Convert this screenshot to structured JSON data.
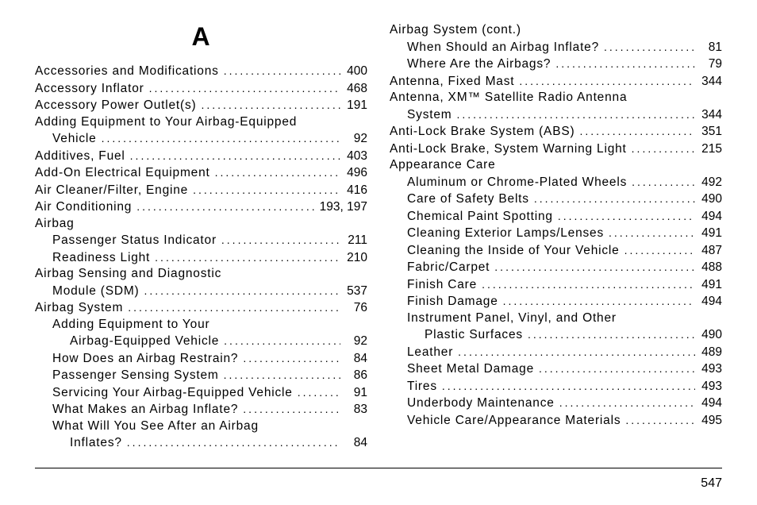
{
  "section_letter": "A",
  "page_number": "547",
  "left_column": [
    {
      "label": "Accessories and Modifications",
      "page": "400",
      "indent": 0
    },
    {
      "label": "Accessory Inflator",
      "page": "468",
      "indent": 0
    },
    {
      "label": "Accessory Power Outlet(s)",
      "page": "191",
      "indent": 0
    },
    {
      "label": "Adding Equipment to Your Airbag-Equipped",
      "page": "",
      "indent": 0,
      "nopage": true
    },
    {
      "label": "Vehicle",
      "page": "92",
      "indent": 1
    },
    {
      "label": "Additives, Fuel",
      "page": "403",
      "indent": 0
    },
    {
      "label": "Add-On Electrical Equipment",
      "page": "496",
      "indent": 0
    },
    {
      "label": "Air Cleaner/Filter, Engine",
      "page": "416",
      "indent": 0
    },
    {
      "label": "Air Conditioning",
      "page": "193,   197",
      "indent": 0
    },
    {
      "label": "Airbag",
      "page": "",
      "indent": 0,
      "nopage": true
    },
    {
      "label": "Passenger Status Indicator",
      "page": "211",
      "indent": 1
    },
    {
      "label": "Readiness Light",
      "page": "210",
      "indent": 1
    },
    {
      "label": "Airbag Sensing and Diagnostic",
      "page": "",
      "indent": 0,
      "nopage": true
    },
    {
      "label": "Module (SDM)",
      "page": "537",
      "indent": 1
    },
    {
      "label": "Airbag System",
      "page": "76",
      "indent": 0
    },
    {
      "label": "Adding Equipment to Your",
      "page": "",
      "indent": 1,
      "nopage": true
    },
    {
      "label": "Airbag-Equipped Vehicle",
      "page": "92",
      "indent": 2
    },
    {
      "label": "How Does an Airbag Restrain?",
      "page": "84",
      "indent": 1
    },
    {
      "label": "Passenger Sensing System",
      "page": "86",
      "indent": 1
    },
    {
      "label": "Servicing Your Airbag-Equipped Vehicle",
      "page": "91",
      "indent": 1
    },
    {
      "label": "What Makes an Airbag Inflate?",
      "page": "83",
      "indent": 1
    },
    {
      "label": "What Will You See After an Airbag",
      "page": "",
      "indent": 1,
      "nopage": true
    },
    {
      "label": "Inflates?",
      "page": "84",
      "indent": 2
    }
  ],
  "right_column": [
    {
      "label": "Airbag System (cont.)",
      "page": "",
      "indent": 0,
      "nopage": true
    },
    {
      "label": "When Should an Airbag Inflate?",
      "page": "81",
      "indent": 1
    },
    {
      "label": "Where Are the Airbags?",
      "page": "79",
      "indent": 1
    },
    {
      "label": "Antenna, Fixed Mast",
      "page": "344",
      "indent": 0
    },
    {
      "label": "Antenna, XM™ Satellite Radio Antenna",
      "page": "",
      "indent": 0,
      "nopage": true
    },
    {
      "label": "System",
      "page": "344",
      "indent": 1
    },
    {
      "label": "Anti-Lock Brake System (ABS)",
      "page": "351",
      "indent": 0
    },
    {
      "label": "Anti-Lock Brake, System Warning Light",
      "page": "215",
      "indent": 0
    },
    {
      "label": "Appearance Care",
      "page": "",
      "indent": 0,
      "nopage": true
    },
    {
      "label": "Aluminum or Chrome-Plated Wheels",
      "page": "492",
      "indent": 1
    },
    {
      "label": "Care of Safety Belts",
      "page": "490",
      "indent": 1
    },
    {
      "label": "Chemical Paint Spotting",
      "page": "494",
      "indent": 1
    },
    {
      "label": "Cleaning Exterior Lamps/Lenses",
      "page": "491",
      "indent": 1
    },
    {
      "label": "Cleaning the Inside of Your Vehicle",
      "page": "487",
      "indent": 1
    },
    {
      "label": "Fabric/Carpet",
      "page": "488",
      "indent": 1
    },
    {
      "label": "Finish Care",
      "page": "491",
      "indent": 1
    },
    {
      "label": "Finish Damage",
      "page": "494",
      "indent": 1
    },
    {
      "label": "Instrument Panel, Vinyl, and Other",
      "page": "",
      "indent": 1,
      "nopage": true
    },
    {
      "label": "Plastic Surfaces",
      "page": "490",
      "indent": 2
    },
    {
      "label": "Leather",
      "page": "489",
      "indent": 1
    },
    {
      "label": "Sheet Metal Damage",
      "page": "493",
      "indent": 1
    },
    {
      "label": "Tires",
      "page": "493",
      "indent": 1
    },
    {
      "label": "Underbody Maintenance",
      "page": "494",
      "indent": 1
    },
    {
      "label": "Vehicle Care/Appearance Materials",
      "page": "495",
      "indent": 1
    }
  ]
}
